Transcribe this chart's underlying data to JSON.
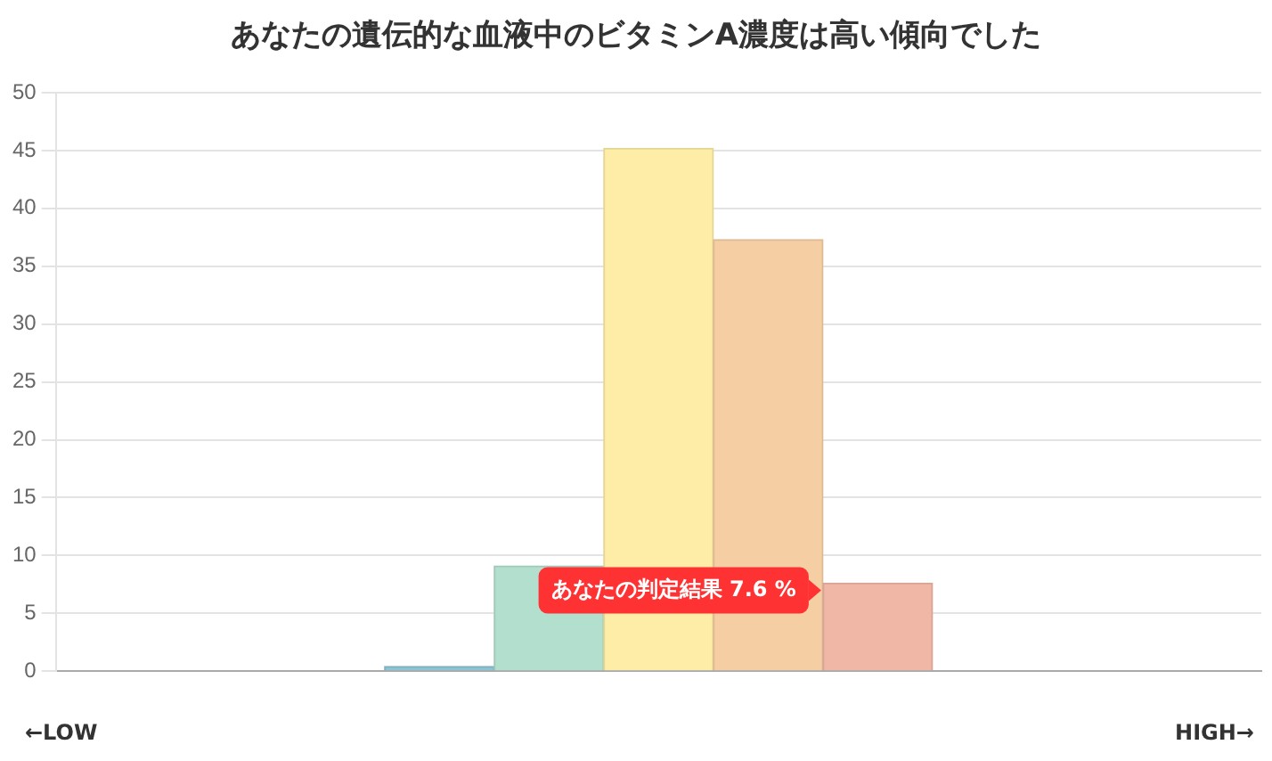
{
  "chart_data": {
    "type": "bar",
    "title": "あなたの遺伝的な血液中のビタミンA濃度は高い傾向でした",
    "categories": [
      null,
      null,
      null,
      null,
      null,
      null,
      null,
      null,
      null,
      null,
      null
    ],
    "values": [
      0,
      0,
      0,
      0.4,
      9.1,
      45.2,
      37.3,
      7.6,
      0,
      0,
      0
    ],
    "colors": [
      "#cccccc",
      "#cccccc",
      "#cccccc",
      "#8cc4d4",
      "#b3dfcf",
      "#feeda6",
      "#f5cfa3",
      "#f0b6a6",
      "#cccccc",
      "#cccccc",
      "#cccccc"
    ],
    "ylim": [
      0,
      50
    ],
    "yticks": [
      0,
      5,
      10,
      15,
      20,
      25,
      30,
      35,
      40,
      45,
      50
    ],
    "grid": "y",
    "legend": false,
    "annotations": [
      "あなたの判定結果 7.6 %",
      "←LOW",
      "HIGH→"
    ]
  }
}
